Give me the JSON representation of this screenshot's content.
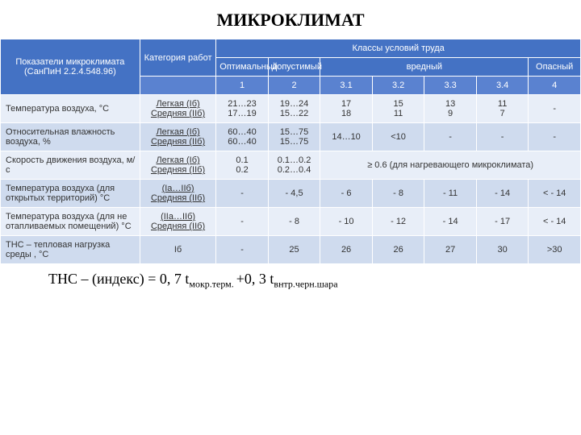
{
  "title": "МИКРОКЛИМАТ",
  "header": {
    "param_title": "Показатели микроклимата (СанПиН 2.2.4.548.96)",
    "classes_title": "Классы условий труда",
    "category_label": "Категория работ",
    "optimal": "Оптимальный",
    "permissible": "допустимый",
    "harmful": "вредный",
    "dangerous": "Опасный",
    "num1": "1",
    "num2": "2",
    "num31": "3.1",
    "num32": "3.2",
    "num33": "3.3",
    "num34": "3.4",
    "num4": "4"
  },
  "rows": [
    {
      "param": "Температура воздуха,  °С",
      "cat": "Легкая (Iб)\nСредняя (IIб)",
      "c1": "21…23\n17…19",
      "c2": "19…24\n15…22",
      "c31": "17\n18",
      "c32": "15\n11",
      "c33": "13\n9",
      "c34": "11\n7",
      "c4": "-"
    },
    {
      "param": "Относительная влажность воздуха,           %",
      "cat": "Легкая (Iб)\nСредняя (IIб)",
      "c1": "60…40\n60…40",
      "c2": "15…75\n15…75",
      "c31": "14…10",
      "c32": "<10",
      "c33": "-",
      "c34": "-",
      "c4": "-"
    },
    {
      "param": "Скорость движения воздуха,                    м/с",
      "cat": "Легкая (Iб)\nСредняя (IIб)",
      "c1": "0.1\n0.2",
      "c2": "0.1…0.2\n0.2…0.4",
      "span": "≥ 0.6 (для нагревающего микроклимата)"
    },
    {
      "param": "Температура воздуха (для открытых территорий) °С",
      "cat": "(Iа…IIб)\nСредняя (IIб)",
      "c1": "-",
      "c2": "- 4,5",
      "c31": "- 6",
      "c32": "- 8",
      "c33": "- 11",
      "c34": "- 14",
      "c4": "< - 14"
    },
    {
      "param": "Температура воздуха (для не отапливаемых помещений)              °С",
      "cat": "(IIа…IIб)\nСредняя (IIб)",
      "c1": "-",
      "c2": "- 8",
      "c31": "- 10",
      "c32": "- 12",
      "c33": "- 14",
      "c34": "- 17",
      "c4": "< - 14"
    },
    {
      "param": "ТНС – тепловая нагрузка среды , °С",
      "cat": "Iб",
      "c1": "-",
      "c2": "25",
      "c31": "26",
      "c32": "26",
      "c33": "27",
      "c34": "30",
      "c4": ">30"
    }
  ],
  "footer": {
    "prefix": "ТНС – (индекс) = 0, 7 t",
    "sub1": "мокр.терм. ",
    "mid": "+0, 3 t",
    "sub2": "внтр.черн.шара"
  },
  "colors": {
    "header_bg": "#4472c4",
    "row_light": "#e8eef8",
    "row_dark": "#cfdbee",
    "text": "#333333"
  },
  "fontsize": {
    "title": 22,
    "header": 11,
    "cell": 11,
    "footer": 18
  }
}
